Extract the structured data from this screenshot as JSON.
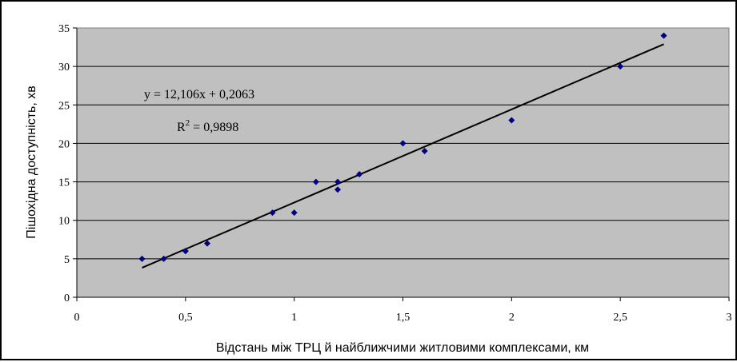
{
  "chart_data": {
    "type": "scatter",
    "xlabel": "Відстань між ТРЦ й найближчими житловими комплексами, км",
    "ylabel": "Пішохідна доступність, хв",
    "xlim": [
      0,
      3
    ],
    "ylim": [
      0,
      35
    ],
    "x_ticks": [
      0,
      0.5,
      1,
      1.5,
      2,
      2.5,
      3
    ],
    "x_tick_labels": [
      "0",
      "0,5",
      "1",
      "1,5",
      "2",
      "2,5",
      "3"
    ],
    "y_ticks": [
      0,
      5,
      10,
      15,
      20,
      25,
      30,
      35
    ],
    "y_tick_labels": [
      "0",
      "5",
      "10",
      "15",
      "20",
      "25",
      "30",
      "35"
    ],
    "grid": "horizontal",
    "plot_background": "#c0c0c0",
    "marker_color": "#00007f",
    "trendline_color": "#000000",
    "points": [
      {
        "x": 0.3,
        "y": 5
      },
      {
        "x": 0.4,
        "y": 5
      },
      {
        "x": 0.5,
        "y": 6
      },
      {
        "x": 0.6,
        "y": 7
      },
      {
        "x": 0.9,
        "y": 11
      },
      {
        "x": 1.0,
        "y": 11
      },
      {
        "x": 1.1,
        "y": 15
      },
      {
        "x": 1.2,
        "y": 15
      },
      {
        "x": 1.2,
        "y": 14
      },
      {
        "x": 1.3,
        "y": 16
      },
      {
        "x": 1.5,
        "y": 20
      },
      {
        "x": 1.6,
        "y": 19
      },
      {
        "x": 2.0,
        "y": 23
      },
      {
        "x": 2.5,
        "y": 30
      },
      {
        "x": 2.7,
        "y": 34
      }
    ],
    "trendline": {
      "slope": 12.106,
      "intercept": 0.2063,
      "x_range": [
        0.3,
        2.7
      ],
      "equation_label": "y = 12,106x + 0,2063",
      "r2_prefix": "R",
      "r2_sup": "2",
      "r2_value": " = 0,9898"
    }
  }
}
